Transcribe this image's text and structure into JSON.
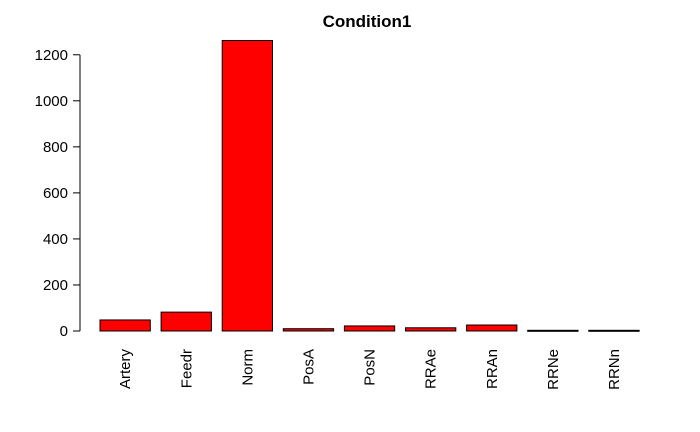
{
  "chart_data": {
    "type": "bar",
    "title": "Condition1",
    "xlabel": "",
    "ylabel": "",
    "categories": [
      "Artery",
      "Feedr",
      "Norm",
      "PosA",
      "PosN",
      "RRAe",
      "RRAn",
      "RRNe",
      "RRNn"
    ],
    "values": [
      48,
      82,
      1262,
      10,
      22,
      14,
      26,
      3,
      3
    ],
    "ylim": [
      0,
      1262
    ],
    "yticks": [
      0,
      200,
      400,
      600,
      800,
      1000,
      1200
    ],
    "grid": false,
    "bar_color": "#ff0000",
    "bar_border_color": "#000000"
  }
}
